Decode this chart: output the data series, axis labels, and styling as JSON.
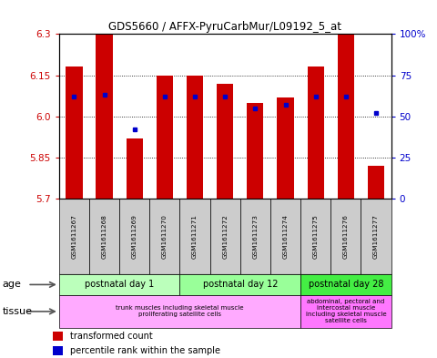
{
  "title": "GDS5660 / AFFX-PyruCarbMur/L09192_5_at",
  "samples": [
    "GSM1611267",
    "GSM1611268",
    "GSM1611269",
    "GSM1611270",
    "GSM1611271",
    "GSM1611272",
    "GSM1611273",
    "GSM1611274",
    "GSM1611275",
    "GSM1611276",
    "GSM1611277"
  ],
  "bar_values": [
    6.18,
    6.3,
    5.92,
    6.15,
    6.15,
    6.12,
    6.05,
    6.07,
    6.18,
    6.3,
    5.82
  ],
  "bar_base": 5.7,
  "percentile_values": [
    62,
    63,
    42,
    62,
    62,
    62,
    55,
    57,
    62,
    62,
    52
  ],
  "ylim": [
    5.7,
    6.3
  ],
  "y_ticks": [
    5.7,
    5.85,
    6.0,
    6.15,
    6.3
  ],
  "right_yticks": [
    0,
    25,
    50,
    75,
    100
  ],
  "bar_color": "#cc0000",
  "dot_color": "#0000cc",
  "age_groups": [
    {
      "label": "postnatal day 1",
      "start": 0,
      "end": 3,
      "color": "#bbffbb"
    },
    {
      "label": "postnatal day 12",
      "start": 4,
      "end": 7,
      "color": "#99ff99"
    },
    {
      "label": "postnatal day 28",
      "start": 8,
      "end": 10,
      "color": "#44ee44"
    }
  ],
  "tissue_groups": [
    {
      "label": "trunk muscles including skeletal muscle\nproliferating satellite cells",
      "start": 0,
      "end": 7,
      "color": "#ffaaff"
    },
    {
      "label": "abdominal, pectoral and\nintercostal muscle\nincluding skeletal muscle\nsatellite cells",
      "start": 8,
      "end": 10,
      "color": "#ff77ff"
    }
  ],
  "legend_bar_label": "transformed count",
  "legend_dot_label": "percentile rank within the sample",
  "age_label": "age",
  "tissue_label": "tissue",
  "sample_bg": "#cccccc",
  "spine_color": "#000000"
}
